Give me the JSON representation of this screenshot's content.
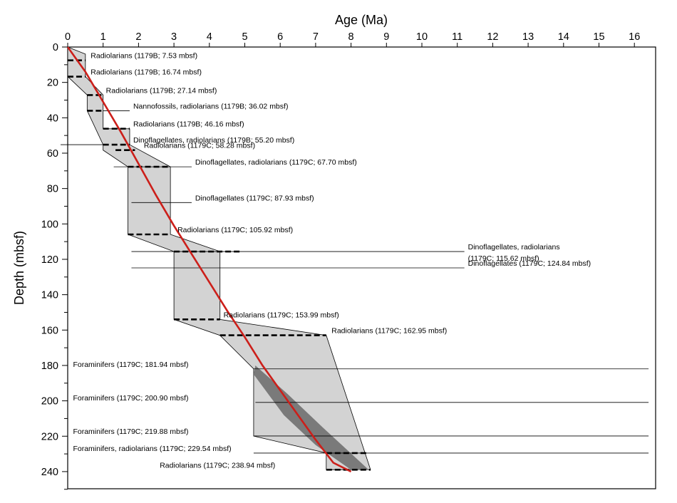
{
  "chart_data": {
    "type": "line",
    "title": "",
    "xlabel": "Age (Ma)",
    "ylabel": "Depth (mbsf)",
    "xlim": [
      0,
      16.5
    ],
    "ylim": [
      0,
      250
    ],
    "x_ticks": [
      "0",
      "1",
      "2",
      "3",
      "4",
      "5",
      "6",
      "7",
      "8",
      "9",
      "10",
      "11",
      "12",
      "13",
      "14",
      "15",
      "16"
    ],
    "y_ticks": [
      "0",
      "20",
      "40",
      "60",
      "80",
      "100",
      "120",
      "140",
      "160",
      "180",
      "200",
      "220",
      "240"
    ],
    "x_tick_values": [
      0,
      1,
      2,
      3,
      4,
      5,
      6,
      7,
      8,
      9,
      10,
      11,
      12,
      13,
      14,
      15,
      16
    ],
    "y_tick_values": [
      0,
      20,
      40,
      60,
      80,
      100,
      120,
      140,
      160,
      180,
      200,
      220,
      240
    ],
    "y_minor_ticks": [
      10,
      30,
      50,
      70,
      90,
      110,
      130,
      150,
      170,
      190,
      210,
      230,
      250
    ],
    "colors": {
      "age_depth_line": "#cc1f1a",
      "uncertainty_envelope": "#d3d3d3",
      "inner_envelope": "#7a7a7a",
      "datum_marker": "#000000"
    },
    "age_depth_model": {
      "name": "",
      "x": [
        0,
        0.5,
        1.0,
        1.5,
        2.0,
        2.5,
        3.0,
        3.5,
        4.0,
        4.5,
        5.0,
        5.5,
        6.0,
        6.5,
        7.0,
        7.5,
        8.0
      ],
      "y": [
        0,
        14,
        31,
        48,
        66,
        84,
        101,
        117,
        133,
        149,
        164,
        180,
        194,
        208,
        222,
        235,
        240
      ]
    },
    "uncertainty_envelope": [
      [
        0,
        0
      ],
      [
        0.5,
        4
      ],
      [
        0.5,
        16.7
      ],
      [
        1.0,
        27.1
      ],
      [
        1.0,
        46.2
      ],
      [
        1.75,
        46.2
      ],
      [
        1.75,
        55.2
      ],
      [
        2.9,
        67.7
      ],
      [
        2.9,
        105.9
      ],
      [
        4.3,
        115.6
      ],
      [
        4.3,
        154.0
      ],
      [
        7.3,
        163.0
      ],
      [
        8.55,
        238.9
      ],
      [
        7.3,
        238.9
      ],
      [
        7.3,
        229.5
      ],
      [
        5.25,
        219.9
      ],
      [
        5.25,
        181.9
      ],
      [
        4.3,
        163.0
      ],
      [
        3.0,
        154.0
      ],
      [
        3.0,
        115.6
      ],
      [
        1.7,
        105.9
      ],
      [
        1.7,
        67.7
      ],
      [
        1.0,
        58.3
      ],
      [
        1.0,
        55.2
      ],
      [
        0.55,
        36.0
      ],
      [
        0.55,
        27.1
      ],
      [
        0,
        16.7
      ],
      [
        0,
        0
      ]
    ],
    "inner_envelope": [
      [
        5.3,
        180
      ],
      [
        6.2,
        196
      ],
      [
        7.2,
        215
      ],
      [
        8.5,
        239
      ],
      [
        8.0,
        239
      ],
      [
        7.0,
        225
      ],
      [
        6.1,
        208
      ],
      [
        5.25,
        185
      ]
    ],
    "datums": [
      {
        "label": "Radiolarians (1179B; 7.53 mbsf)",
        "depth": 7.53,
        "x1": 0.0,
        "x2": 0.5,
        "label_x": 0.65,
        "guide": null
      },
      {
        "label": "Radiolarians (1179B; 16.74 mbsf)",
        "depth": 16.74,
        "x1": 0.0,
        "x2": 0.5,
        "label_x": 0.65,
        "guide": null
      },
      {
        "label": "Radiolarians (1179B; 27.14 mbsf)",
        "depth": 27.14,
        "x1": 0.55,
        "x2": 1.0,
        "label_x": 1.08,
        "guide": null
      },
      {
        "label": "Nannofossils, radiolarians (1179B; 36.02 mbsf)",
        "depth": 36.02,
        "x1": 0.55,
        "x2": 1.0,
        "label_x": 1.85,
        "guide": [
          1.0,
          1.75
        ]
      },
      {
        "label": "Radiolarians (1179B; 46.16 mbsf)",
        "depth": 46.16,
        "x1": 1.0,
        "x2": 1.75,
        "label_x": 1.85,
        "guide": null
      },
      {
        "label": "Dinoflagellates, radiolarians (1179B; 55.20 mbsf)",
        "depth": 55.2,
        "x1": 1.0,
        "x2": 1.75,
        "label_x": 1.85,
        "guide": [
          -0.2,
          1.0
        ]
      },
      {
        "label": "Radiolarians (1179C; 58.28 mbsf)",
        "depth": 58.28,
        "x1": 1.35,
        "x2": 1.9,
        "label_x": 2.15,
        "guide": null
      },
      {
        "label": "Dinoflagellates, radiolarians (1179C; 67.70 mbsf)",
        "depth": 67.7,
        "x1": 1.7,
        "x2": 2.9,
        "label_x": 3.6,
        "guide": [
          1.3,
          3.5
        ]
      },
      {
        "label": "Dinoflagellates (1179C; 87.93 mbsf)",
        "depth": 87.93,
        "x1": null,
        "x2": null,
        "label_x": 3.6,
        "guide": [
          1.8,
          3.5
        ]
      },
      {
        "label": "Radiolarians (1179C; 105.92 mbsf)",
        "depth": 105.92,
        "x1": 1.7,
        "x2": 2.9,
        "label_x": 3.1,
        "guide": null
      },
      {
        "label": "Dinoflagellates, radiolarians",
        "label2": "(1179C; 115.62 mbsf)",
        "depth": 115.62,
        "x1": 3.0,
        "x2": 4.9,
        "label_x": 11.3,
        "guide": [
          1.8,
          11.2
        ]
      },
      {
        "label": "Dinoflagellates (1179C; 124.84 mbsf)",
        "depth": 124.84,
        "x1": null,
        "x2": null,
        "label_x": 11.3,
        "guide": [
          1.8,
          11.2
        ]
      },
      {
        "label": "Radiolarians (1179C; 153.99 mbsf)",
        "depth": 153.99,
        "x1": 3.0,
        "x2": 4.3,
        "label_x": 4.4,
        "guide": null
      },
      {
        "label": "Radiolarians (1179C; 162.95 mbsf)",
        "depth": 162.95,
        "x1": 4.3,
        "x2": 7.3,
        "label_x": 7.45,
        "guide": null
      },
      {
        "label": "Foraminifers (1179C; 181.94 mbsf)",
        "depth": 181.94,
        "x1": null,
        "x2": null,
        "label_x": 0.15,
        "guide": [
          5.25,
          16.4
        ]
      },
      {
        "label": "Foraminifers (1179C; 200.90 mbsf)",
        "depth": 200.9,
        "x1": null,
        "x2": null,
        "label_x": 0.15,
        "guide": [
          5.3,
          16.4
        ]
      },
      {
        "label": "Foraminifers (1179C; 219.88 mbsf)",
        "depth": 219.88,
        "x1": null,
        "x2": null,
        "label_x": 0.15,
        "guide": [
          5.25,
          16.4
        ]
      },
      {
        "label": "Foraminifers, radiolarians (1179C; 229.54 mbsf)",
        "depth": 229.54,
        "x1": 7.3,
        "x2": 8.45,
        "label_x": 0.15,
        "guide": [
          5.25,
          16.4
        ]
      },
      {
        "label": "Radiolarians (1179C; 238.94 mbsf)",
        "depth": 238.94,
        "x1": 7.3,
        "x2": 8.55,
        "label_x": 2.6,
        "guide": null
      }
    ]
  }
}
